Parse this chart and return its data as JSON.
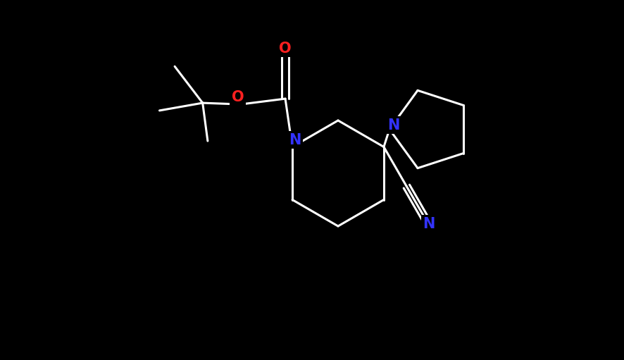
{
  "background_color": "#000000",
  "bond_color": "#ffffff",
  "N_color": "#3333ff",
  "O_color": "#ff2020",
  "bond_width": 2.2,
  "figsize": [
    8.86,
    5.11
  ],
  "dpi": 100,
  "xlim": [
    0,
    8.86
  ],
  "ylim": [
    0,
    5.11
  ]
}
